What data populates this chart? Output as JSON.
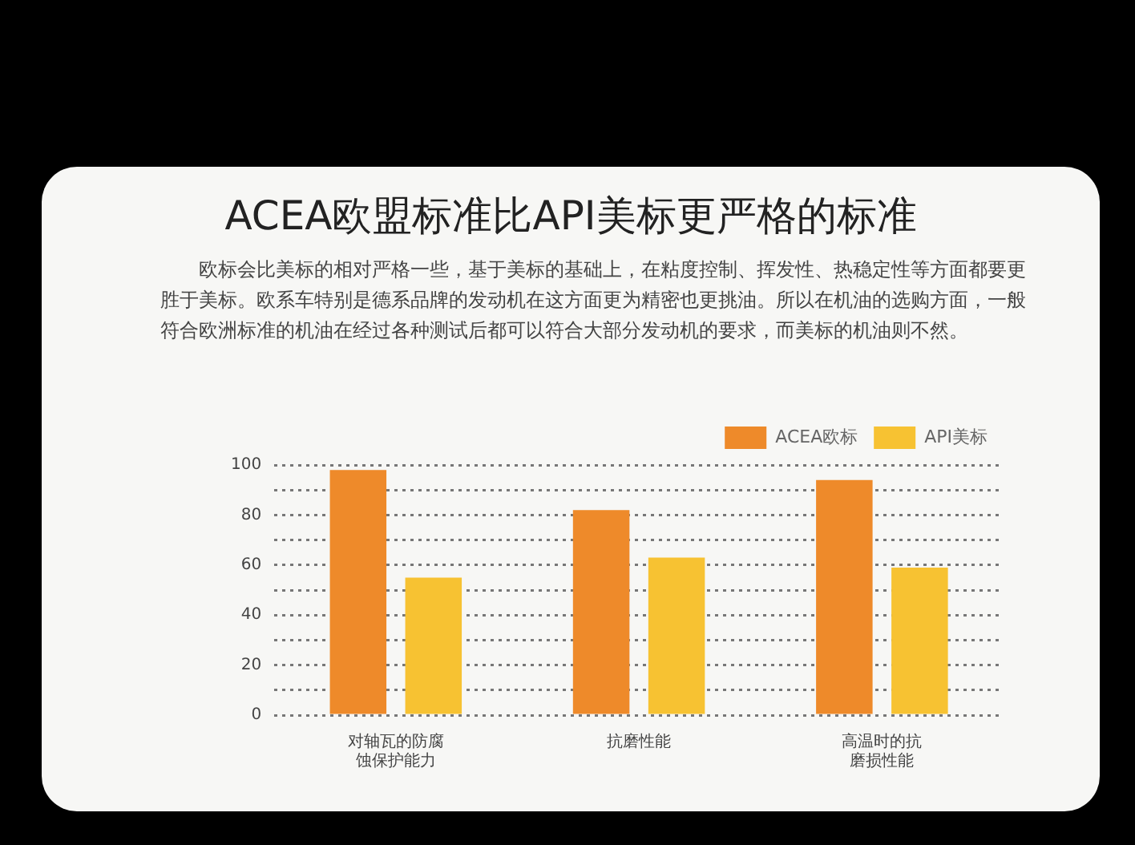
{
  "chart_data": {
    "type": "bar",
    "title": "ACEA欧盟标准比API美标更严格的标准",
    "subtitle": "欧标会比美标的相对严格一些，基于美标的基础上，在粘度控制、挥发性、热稳定性等方面都要更胜于美标。欧系车特别是德系品牌的发动机在这方面更为精密也更挑油。所以在机油的选购方面，一般符合欧洲标准的机油在经过各种测试后都可以符合大部分发动机的要求，而美标的机油则不然。",
    "categories": [
      "对轴瓦的防腐蚀保护能力",
      "抗磨性能",
      "高温时的抗磨损性能"
    ],
    "series": [
      {
        "name": "ACEA欧标",
        "color": "#ee8a2a",
        "values": [
          98,
          82,
          94
        ]
      },
      {
        "name": "API美标",
        "color": "#f7c232",
        "values": [
          55,
          63,
          59
        ]
      }
    ],
    "ylim": [
      0,
      100
    ],
    "yticks": [
      0,
      {
        "value": 10,
        "label": null
      },
      20,
      {
        "value": 30,
        "label": null
      },
      40,
      {
        "value": 50,
        "label": null
      },
      60,
      {
        "value": 70,
        "label": null
      },
      80,
      {
        "value": 90,
        "label": null
      },
      100
    ],
    "grid": "y",
    "legend": "top right"
  }
}
